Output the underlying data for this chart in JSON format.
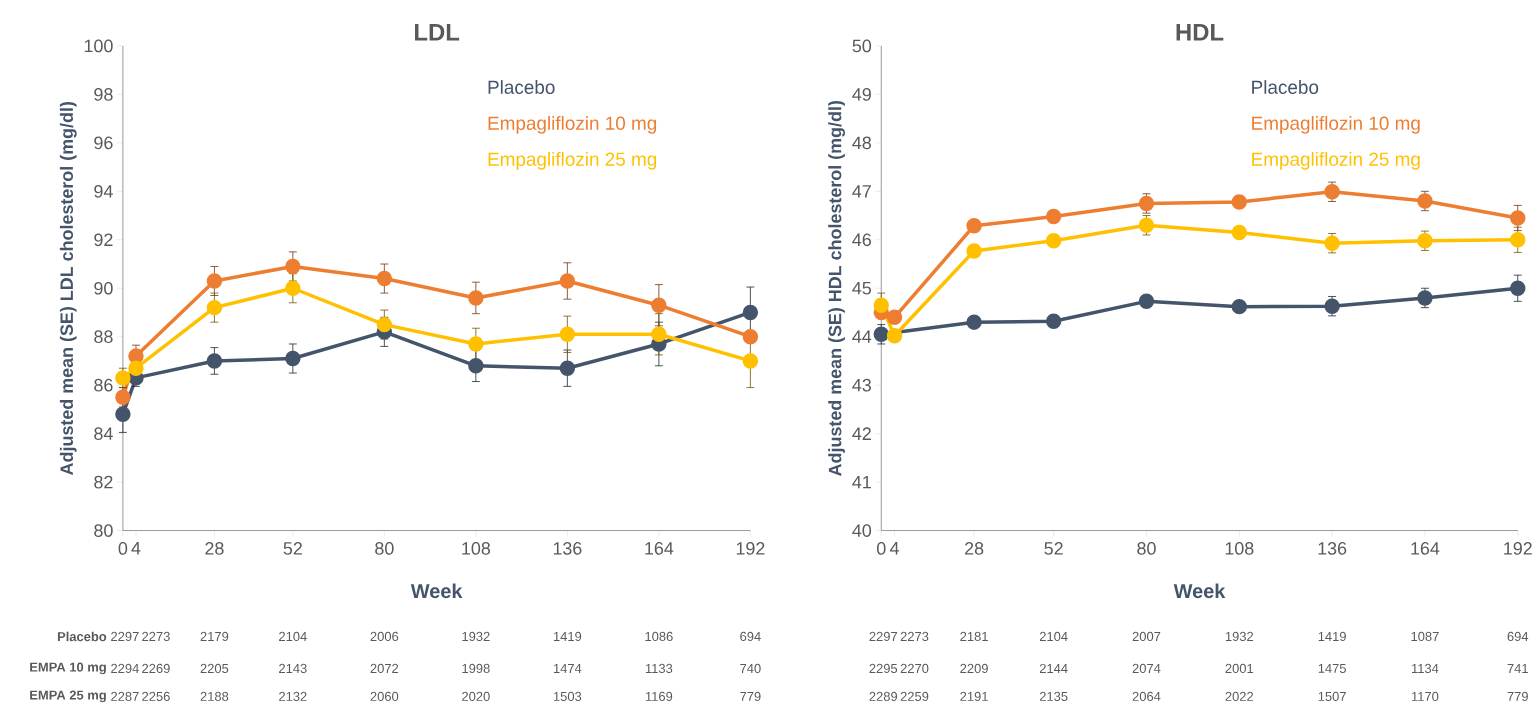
{
  "chart_data": [
    {
      "type": "line",
      "title": "LDL",
      "xlabel": "Week",
      "ylabel": "Adjusted mean (SE) LDL cholesterol (mg/dl)",
      "x": [
        0,
        4,
        28,
        52,
        80,
        108,
        136,
        164,
        192
      ],
      "xlim": [
        0,
        192
      ],
      "xticks": [
        0,
        4,
        28,
        52,
        80,
        108,
        136,
        164,
        192
      ],
      "ylim": [
        80,
        100
      ],
      "yticks": [
        80,
        82,
        84,
        86,
        88,
        90,
        92,
        94,
        96,
        98,
        100
      ],
      "grid": false,
      "legend": "top",
      "marker": "circle",
      "line_style": "solid",
      "series": [
        {
          "name": "Placebo",
          "color": "#44546a",
          "values": [
            84.8,
            86.3,
            87.0,
            87.1,
            88.2,
            86.8,
            86.7,
            87.7,
            89.0
          ],
          "errors": [
            0.75,
            0.35,
            0.55,
            0.6,
            0.6,
            0.65,
            0.75,
            0.9,
            1.05
          ]
        },
        {
          "name": "Empagliflozin 10 mg",
          "color": "#ed7d31",
          "values": [
            85.5,
            87.2,
            90.3,
            90.9,
            90.4,
            89.6,
            90.3,
            89.3,
            88.0
          ],
          "errors": [
            0.4,
            0.45,
            0.6,
            0.6,
            0.6,
            0.65,
            0.75,
            0.85,
            null
          ]
        },
        {
          "name": "Empagliflozin 25 mg",
          "color": "#ffc000",
          "values": [
            86.3,
            86.7,
            89.2,
            90.0,
            88.5,
            87.7,
            88.1,
            88.1,
            87.0
          ],
          "errors": [
            0.4,
            null,
            0.6,
            0.6,
            0.6,
            0.65,
            0.75,
            0.85,
            1.1
          ]
        }
      ],
      "annotations": [
        "Placebo",
        "2297",
        "2273",
        "2179",
        "2104",
        "2006",
        "1932",
        "1419",
        "1086",
        "694",
        "EMPA 10 mg",
        "2294",
        "2269",
        "2205",
        "2143",
        "2072",
        "1998",
        "1474",
        "1133",
        "740",
        "EMPA 25 mg",
        "2287",
        "2256",
        "2188",
        "2132",
        "2060",
        "2020",
        "1503",
        "1169",
        "779"
      ]
    },
    {
      "type": "line",
      "title": "HDL",
      "xlabel": "Week",
      "ylabel": "Adjusted mean (SE) HDL cholesterol (mg/dl)",
      "x": [
        0,
        4,
        28,
        52,
        80,
        108,
        136,
        164,
        192
      ],
      "xlim": [
        0,
        192
      ],
      "xticks": [
        0,
        4,
        28,
        52,
        80,
        108,
        136,
        164,
        192
      ],
      "ylim": [
        40,
        50
      ],
      "yticks": [
        40,
        41,
        42,
        43,
        44,
        45,
        46,
        47,
        48,
        49,
        50
      ],
      "grid": false,
      "legend": "top",
      "marker": "circle",
      "line_style": "solid",
      "series": [
        {
          "name": "Placebo",
          "color": "#44546a",
          "values": [
            44.05,
            null,
            44.3,
            44.32,
            44.73,
            44.62,
            44.63,
            44.8,
            45.0
          ],
          "errors": [
            0.2,
            null,
            null,
            null,
            null,
            null,
            0.2,
            0.2,
            0.27
          ]
        },
        {
          "name": "Empagliflozin 10 mg",
          "color": "#ed7d31",
          "values": [
            44.5,
            44.4,
            46.29,
            46.48,
            46.75,
            46.78,
            46.99,
            46.8,
            46.45
          ],
          "errors": [
            null,
            null,
            null,
            null,
            0.2,
            null,
            0.2,
            0.2,
            0.26
          ]
        },
        {
          "name": "Empagliflozin 25 mg",
          "color": "#ffc000",
          "values": [
            44.65,
            44.02,
            45.77,
            45.98,
            46.3,
            46.15,
            45.93,
            45.98,
            46.0
          ],
          "errors": [
            0.25,
            null,
            null,
            null,
            0.2,
            null,
            0.2,
            0.2,
            0.26
          ]
        }
      ],
      "annotations": [
        "2297",
        "2273",
        "2181",
        "2104",
        "2007",
        "1932",
        "1419",
        "1087",
        "694",
        "2295",
        "2270",
        "2209",
        "2144",
        "2074",
        "2001",
        "1475",
        "1134",
        "741",
        "2289",
        "2259",
        "2191",
        "2135",
        "2064",
        "2022",
        "1507",
        "1170",
        "779"
      ]
    }
  ]
}
